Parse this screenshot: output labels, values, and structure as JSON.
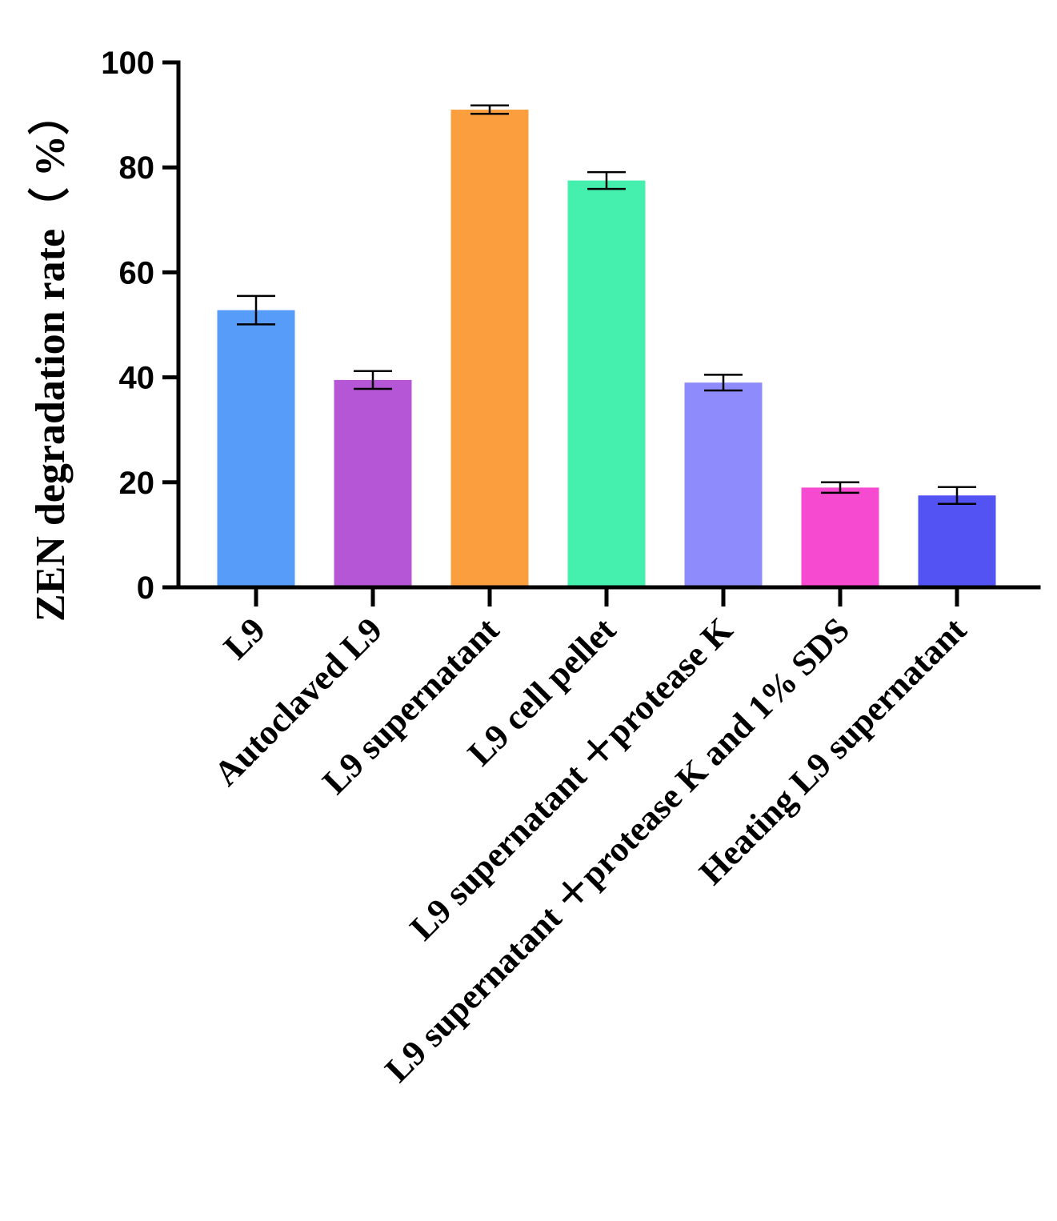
{
  "chart_data": {
    "type": "bar",
    "title": "",
    "xlabel": "",
    "ylabel": "ZEN degradation rate（ %）",
    "ylim": [
      0,
      100
    ],
    "yticks": [
      0,
      20,
      40,
      60,
      80,
      100
    ],
    "grid": false,
    "categories": [
      "L9",
      "Autoclaved L9",
      "L9 supernatant",
      "L9 cell pellet",
      "L9 supernatant ＋protease K",
      "L9 supernatant ＋protease K and 1% SDS",
      "Heating L9 supernatant"
    ],
    "values": [
      52.8,
      39.5,
      91.0,
      77.5,
      39.0,
      19.0,
      17.5
    ],
    "errors": [
      2.7,
      1.7,
      0.8,
      1.6,
      1.5,
      1.0,
      1.6
    ],
    "colors": [
      "#579cf8",
      "#b556d6",
      "#fb9e3d",
      "#45efad",
      "#8e8cfc",
      "#f64bd0",
      "#5352f3"
    ]
  }
}
